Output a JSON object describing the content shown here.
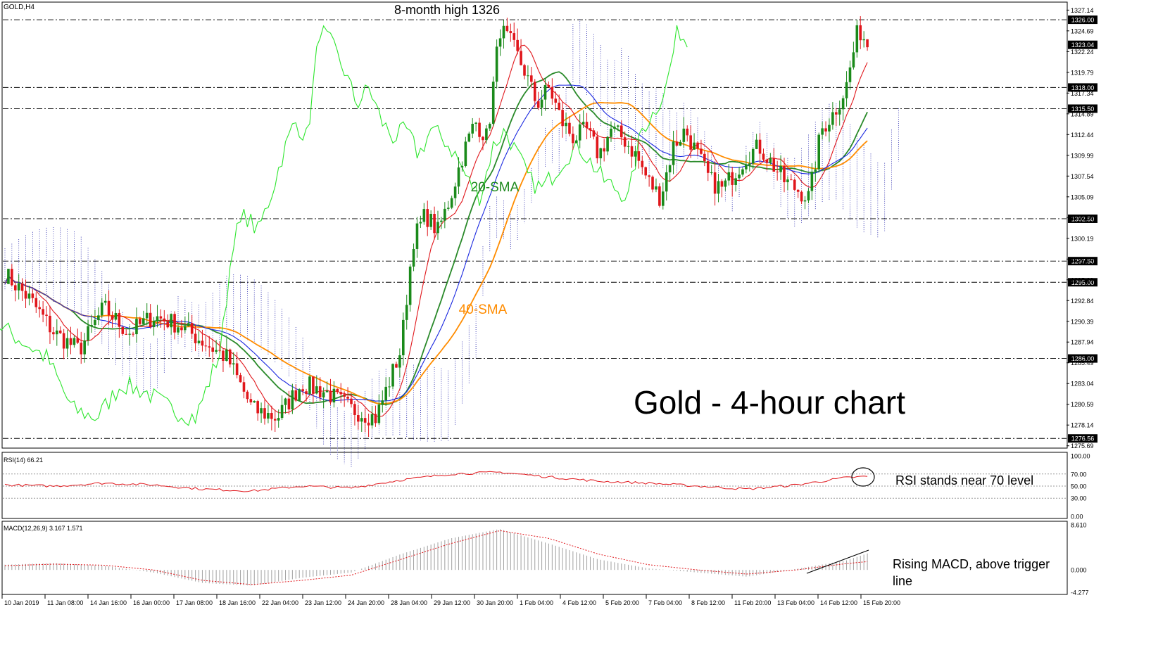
{
  "chart_data": {
    "type": "candlestick",
    "symbol_label": "GOLD,H4",
    "price_axis": {
      "min": 1275.5,
      "max": 1328.0,
      "ticks": [
        "1327.14",
        "1324.69",
        "1322.24",
        "1319.79",
        "1317.34",
        "1314.89",
        "1312.44",
        "1309.99",
        "1307.54",
        "1305.09",
        "1302.64",
        "1300.19",
        "1297.74",
        "1295.29",
        "1292.84",
        "1290.39",
        "1287.94",
        "1285.49",
        "1283.04",
        "1280.59",
        "1278.14",
        "1275.69"
      ]
    },
    "levels": [
      {
        "price": 1326.0,
        "label": "1326.00"
      },
      {
        "price": 1318.0,
        "label": "1318.00"
      },
      {
        "price": 1315.5,
        "label": "1315.50"
      },
      {
        "price": 1302.5,
        "label": "1302.50"
      },
      {
        "price": 1297.5,
        "label": "1297.50"
      },
      {
        "price": 1295.0,
        "label": "1295.00"
      },
      {
        "price": 1286.0,
        "label": "1286.00"
      },
      {
        "price": 1276.56,
        "label": "1276.56"
      }
    ],
    "current_price": {
      "price": 1323.04,
      "label": "1323.04"
    },
    "time_labels": [
      "10 Jan 2019",
      "11 Jan 08:00",
      "14 Jan 16:00",
      "16 Jan 00:00",
      "17 Jan 08:00",
      "18 Jan 16:00",
      "22 Jan 04:00",
      "23 Jan 12:00",
      "24 Jan 20:00",
      "28 Jan 04:00",
      "29 Jan 12:00",
      "30 Jan 20:00",
      "1 Feb 04:00",
      "4 Feb 12:00",
      "5 Feb 20:00",
      "7 Feb 04:00",
      "8 Feb 12:00",
      "11 Feb 20:00",
      "13 Feb 04:00",
      "14 Feb 12:00",
      "15 Feb 20:00"
    ],
    "close_path": [
      [
        0,
        1296
      ],
      [
        10,
        1293
      ],
      [
        20,
        1289
      ],
      [
        30,
        1287
      ],
      [
        40,
        1292
      ],
      [
        50,
        1289
      ],
      [
        60,
        1291
      ],
      [
        70,
        1290
      ],
      [
        80,
        1288
      ],
      [
        90,
        1286
      ],
      [
        100,
        1280
      ],
      [
        110,
        1279
      ],
      [
        120,
        1283
      ],
      [
        130,
        1282
      ],
      [
        140,
        1280
      ],
      [
        150,
        1279
      ],
      [
        160,
        1287
      ],
      [
        165,
        1300
      ],
      [
        170,
        1303
      ],
      [
        175,
        1301
      ],
      [
        180,
        1305
      ],
      [
        185,
        1310
      ],
      [
        190,
        1314
      ],
      [
        195,
        1312
      ],
      [
        200,
        1325
      ],
      [
        205,
        1323
      ],
      [
        210,
        1320
      ],
      [
        215,
        1316
      ],
      [
        220,
        1318
      ],
      [
        225,
        1314
      ],
      [
        230,
        1312
      ],
      [
        235,
        1313
      ],
      [
        240,
        1310
      ],
      [
        245,
        1313
      ],
      [
        250,
        1312
      ],
      [
        255,
        1310
      ],
      [
        260,
        1307
      ],
      [
        265,
        1305
      ],
      [
        270,
        1311
      ],
      [
        275,
        1313
      ],
      [
        280,
        1310
      ],
      [
        285,
        1307
      ],
      [
        290,
        1306
      ],
      [
        295,
        1308
      ],
      [
        300,
        1310
      ],
      [
        305,
        1311
      ],
      [
        310,
        1309
      ],
      [
        315,
        1307
      ],
      [
        320,
        1306
      ],
      [
        325,
        1305
      ],
      [
        330,
        1313
      ],
      [
        335,
        1315
      ],
      [
        340,
        1318
      ],
      [
        345,
        1325
      ],
      [
        349,
        1323
      ]
    ],
    "series": [
      {
        "name": "20-SMA",
        "color": "#2a8a2a"
      },
      {
        "name": "40-SMA",
        "color": "#ff8c00"
      },
      {
        "name": "",
        "color": "#e0161b"
      },
      {
        "name": "",
        "color": "#1a28e0"
      },
      {
        "name": "",
        "color": "#2ee62e"
      }
    ],
    "annotations": {
      "high_note": "8-month high 1326",
      "title": "Gold - 4-hour chart",
      "sma20": "20-SMA",
      "sma40": "40-SMA",
      "rsi_note": "RSI stands near 70 level",
      "macd_note": "Rising MACD, above trigger line"
    },
    "rsi": {
      "label": "RSI(14) 66.21",
      "ticks": [
        "100.00",
        "70.00",
        "50.00",
        "30.00",
        "0.00"
      ],
      "values": [
        [
          0,
          52
        ],
        [
          20,
          50
        ],
        [
          40,
          55
        ],
        [
          60,
          52
        ],
        [
          80,
          45
        ],
        [
          100,
          42
        ],
        [
          120,
          50
        ],
        [
          140,
          47
        ],
        [
          160,
          60
        ],
        [
          180,
          70
        ],
        [
          200,
          73
        ],
        [
          220,
          65
        ],
        [
          240,
          58
        ],
        [
          260,
          55
        ],
        [
          280,
          50
        ],
        [
          300,
          45
        ],
        [
          320,
          52
        ],
        [
          340,
          64
        ],
        [
          349,
          66
        ]
      ]
    },
    "macd": {
      "label": "MACD(12,26,9) 3.167 1.571",
      "ticks": [
        "8.610",
        "0.000",
        "-4.277"
      ],
      "histogram": [
        [
          0,
          1
        ],
        [
          20,
          1.3
        ],
        [
          40,
          0.8
        ],
        [
          60,
          -0.5
        ],
        [
          80,
          -2.5
        ],
        [
          100,
          -3
        ],
        [
          120,
          -1.5
        ],
        [
          140,
          -0.5
        ],
        [
          160,
          3
        ],
        [
          180,
          6
        ],
        [
          200,
          7.8
        ],
        [
          220,
          5
        ],
        [
          240,
          2
        ],
        [
          260,
          0.3
        ],
        [
          280,
          -0.5
        ],
        [
          300,
          -1.3
        ],
        [
          320,
          0.2
        ],
        [
          340,
          1.8
        ],
        [
          349,
          3.2
        ]
      ],
      "signal": [
        [
          0,
          0.8
        ],
        [
          20,
          1.1
        ],
        [
          40,
          0.9
        ],
        [
          60,
          0
        ],
        [
          80,
          -2
        ],
        [
          100,
          -2.8
        ],
        [
          120,
          -2
        ],
        [
          140,
          -1
        ],
        [
          160,
          2
        ],
        [
          180,
          5
        ],
        [
          200,
          7.5
        ],
        [
          220,
          6
        ],
        [
          240,
          3
        ],
        [
          260,
          1
        ],
        [
          280,
          0
        ],
        [
          300,
          -0.8
        ],
        [
          320,
          0
        ],
        [
          340,
          1.2
        ],
        [
          349,
          1.6
        ]
      ]
    }
  }
}
